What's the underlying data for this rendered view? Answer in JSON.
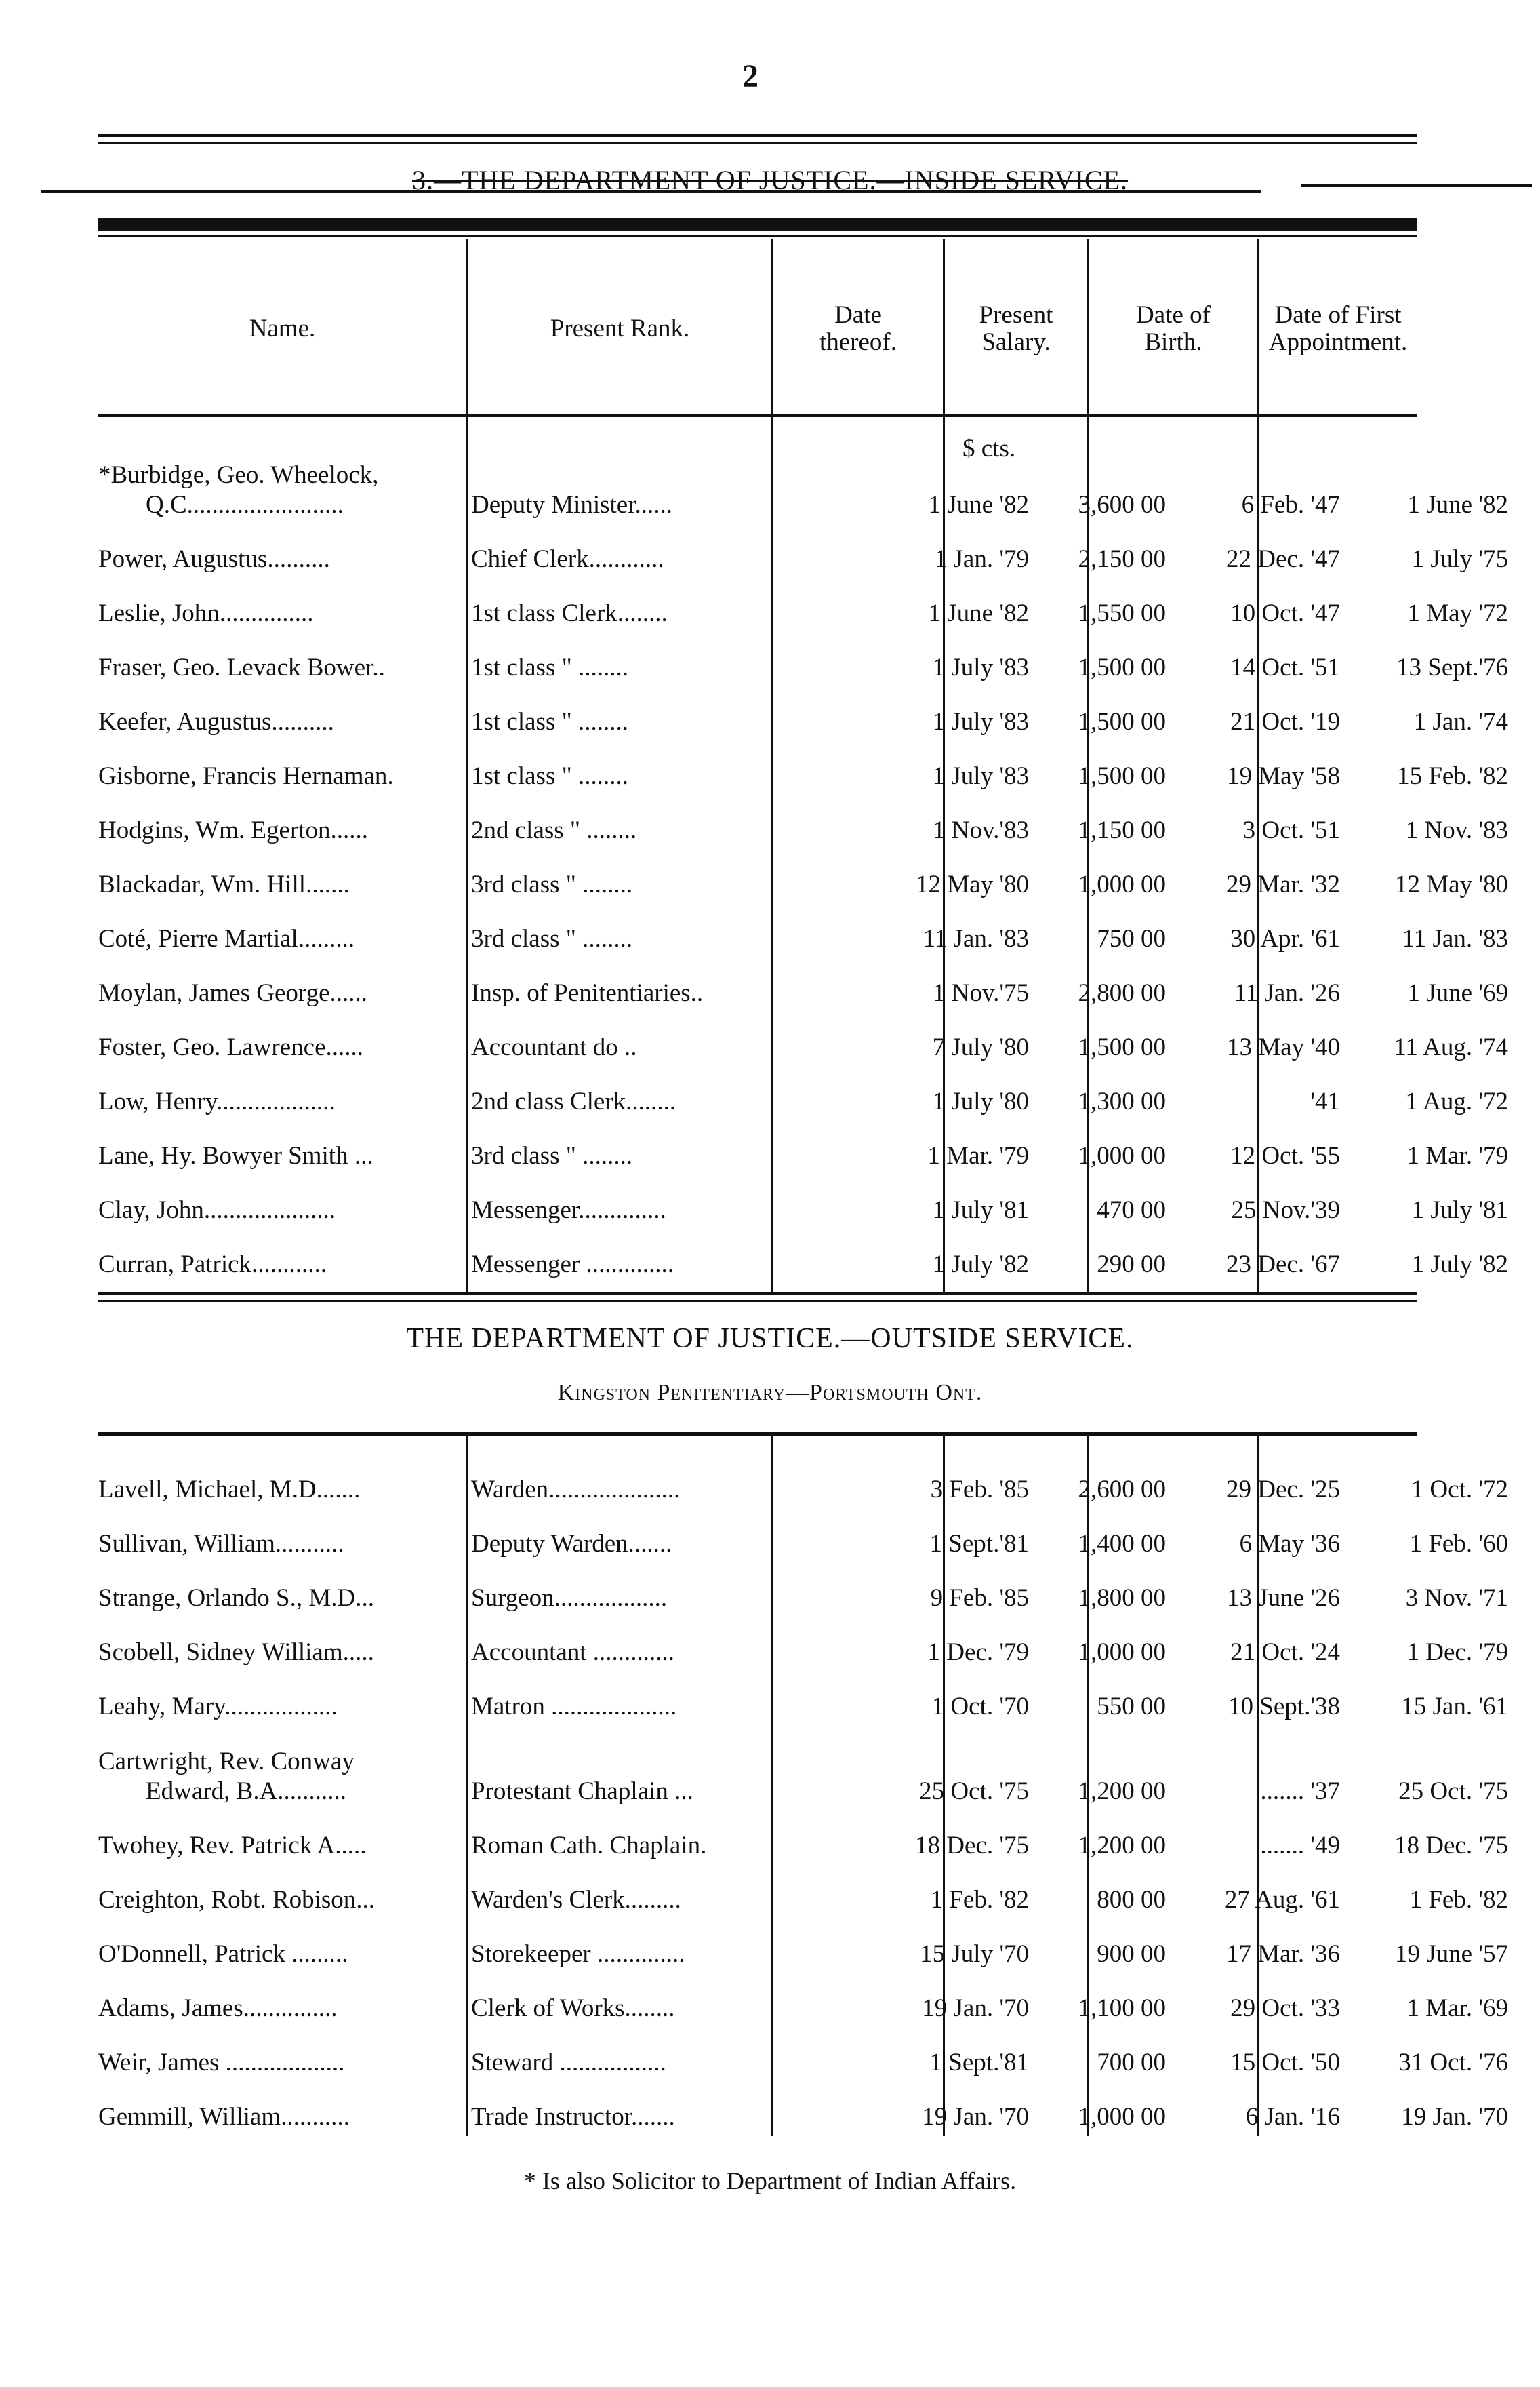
{
  "page_number": "2",
  "inside": {
    "title": "3.—THE DEPARTMENT OF JUSTICE.—INSIDE SERVICE.",
    "columns": [
      "Name.",
      "Present Rank.",
      "Date thereof.",
      "Present Salary.",
      "Date of Birth.",
      "Date of First Appointment."
    ],
    "currency_header": "$ cts.",
    "rows": [
      {
        "name": "*Burbidge, Geo. Wheelock,",
        "name2": "Q.C.........................",
        "rank": "Deputy Minister......",
        "date": "1 June '82",
        "salary": "3,600 00",
        "birth": "6 Feb. '47",
        "first": "1 June '82"
      },
      {
        "name": "Power, Augustus..........",
        "rank": "Chief Clerk............",
        "date": "1 Jan. '79",
        "salary": "2,150 00",
        "birth": "22 Dec. '47",
        "first": "1 July '75"
      },
      {
        "name": "Leslie, John...............",
        "rank": "1st class Clerk........",
        "date": "1 June '82",
        "salary": "1,550 00",
        "birth": "10 Oct. '47",
        "first": "1 May '72"
      },
      {
        "name": "Fraser, Geo. Levack Bower..",
        "rank": "1st class   \"   ........",
        "date": "1 July '83",
        "salary": "1,500 00",
        "birth": "14 Oct. '51",
        "first": "13 Sept.'76"
      },
      {
        "name": "Keefer, Augustus..........",
        "rank": "1st class   \"   ........",
        "date": "1 July '83",
        "salary": "1,500 00",
        "birth": "21 Oct. '19",
        "first": "1 Jan. '74"
      },
      {
        "name": "Gisborne, Francis Hernaman.",
        "rank": "1st class   \"   ........",
        "date": "1 July '83",
        "salary": "1,500 00",
        "birth": "19 May '58",
        "first": "15 Feb. '82"
      },
      {
        "name": "Hodgins, Wm. Egerton......",
        "rank": "2nd class   \"   ........",
        "date": "1 Nov.'83",
        "salary": "1,150 00",
        "birth": "3 Oct. '51",
        "first": "1 Nov. '83"
      },
      {
        "name": "Blackadar, Wm. Hill.......",
        "rank": "3rd class   \"   ........",
        "date": "12 May '80",
        "salary": "1,000 00",
        "birth": "29 Mar. '32",
        "first": "12 May '80"
      },
      {
        "name": "Coté, Pierre Martial.........",
        "rank": "3rd class   \"   ........",
        "date": "11 Jan. '83",
        "salary": "750 00",
        "birth": "30 Apr. '61",
        "first": "11 Jan. '83"
      },
      {
        "name": "Moylan, James George......",
        "rank": "Insp. of Penitentiaries..",
        "date": "1 Nov.'75",
        "salary": "2,800 00",
        "birth": "11 Jan. '26",
        "first": "1 June '69"
      },
      {
        "name": "Foster, Geo. Lawrence......",
        "rank": "Accountant   do   ..",
        "date": "7 July '80",
        "salary": "1,500 00",
        "birth": "13 May '40",
        "first": "11 Aug. '74"
      },
      {
        "name": "Low, Henry...................",
        "rank": "2nd class Clerk........",
        "date": "1 July '80",
        "salary": "1,300 00",
        "birth": "'41",
        "first": "1 Aug. '72"
      },
      {
        "name": "Lane, Hy. Bowyer Smith ...",
        "rank": "3rd class   \"   ........",
        "date": "1 Mar. '79",
        "salary": "1,000 00",
        "birth": "12 Oct. '55",
        "first": "1 Mar. '79"
      },
      {
        "name": "Clay, John.....................",
        "rank": "Messenger..............",
        "date": "1 July '81",
        "salary": "470 00",
        "birth": "25 Nov.'39",
        "first": "1 July '81"
      },
      {
        "name": "Curran, Patrick............",
        "rank": "Messenger ..............",
        "date": "1 July '82",
        "salary": "290 00",
        "birth": "23 Dec. '67",
        "first": "1 July '82"
      }
    ]
  },
  "outside": {
    "title": "THE DEPARTMENT OF JUSTICE.—OUTSIDE SERVICE.",
    "subtitle": "Kingston Penitentiary—Portsmouth Ont.",
    "rows": [
      {
        "name": "Lavell, Michael, M.D.......",
        "rank": "Warden.....................",
        "date": "3 Feb. '85",
        "salary": "2,600 00",
        "birth": "29 Dec. '25",
        "first": "1 Oct. '72"
      },
      {
        "name": "Sullivan, William...........",
        "rank": "Deputy Warden.......",
        "date": "1 Sept.'81",
        "salary": "1,400 00",
        "birth": "6 May '36",
        "first": "1 Feb. '60"
      },
      {
        "name": "Strange, Orlando S., M.D...",
        "rank": "Surgeon..................",
        "date": "9 Feb. '85",
        "salary": "1,800 00",
        "birth": "13 June '26",
        "first": "3 Nov. '71"
      },
      {
        "name": "Scobell, Sidney William.....",
        "rank": "Accountant .............",
        "date": "1 Dec. '79",
        "salary": "1,000 00",
        "birth": "21 Oct. '24",
        "first": "1 Dec. '79"
      },
      {
        "name": "Leahy, Mary..................",
        "rank": "Matron ....................",
        "date": "1 Oct. '70",
        "salary": "550 00",
        "birth": "10 Sept.'38",
        "first": "15 Jan. '61"
      },
      {
        "name": "Cartwright, Rev. Conway",
        "name2": "Edward, B.A...........",
        "rank": "Protestant Chaplain ...",
        "date": "25 Oct. '75",
        "salary": "1,200 00",
        "birth": "....... '37",
        "first": "25 Oct. '75"
      },
      {
        "name": "Twohey, Rev. Patrick A.....",
        "rank": "Roman Cath. Chaplain.",
        "date": "18 Dec. '75",
        "salary": "1,200 00",
        "birth": "....... '49",
        "first": "18 Dec. '75"
      },
      {
        "name": "Creighton, Robt. Robison...",
        "rank": "Warden's Clerk.........",
        "date": "1 Feb. '82",
        "salary": "800 00",
        "birth": "27 Aug. '61",
        "first": "1 Feb. '82"
      },
      {
        "name": "O'Donnell, Patrick .........",
        "rank": "Storekeeper ..............",
        "date": "15 July '70",
        "salary": "900 00",
        "birth": "17 Mar. '36",
        "first": "19 June '57"
      },
      {
        "name": "Adams, James...............",
        "rank": "Clerk of Works........",
        "date": "19 Jan. '70",
        "salary": "1,100 00",
        "birth": "29 Oct. '33",
        "first": "1 Mar. '69"
      },
      {
        "name": "Weir, James ...................",
        "rank": "Steward .................",
        "date": "1 Sept.'81",
        "salary": "700 00",
        "birth": "15 Oct. '50",
        "first": "31 Oct. '76"
      },
      {
        "name": "Gemmill, William...........",
        "rank": "Trade Instructor.......",
        "date": "19 Jan. '70",
        "salary": "1,000 00",
        "birth": "6 Jan. '16",
        "first": "19 Jan. '70"
      }
    ]
  },
  "footnote": "* Is also Solicitor to Department of Indian Affairs."
}
